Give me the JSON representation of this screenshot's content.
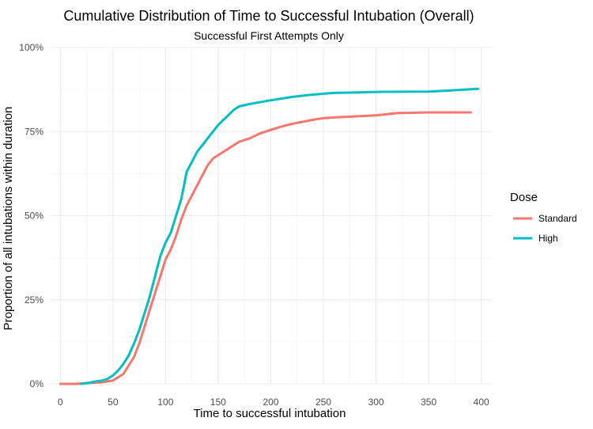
{
  "chart_data": {
    "type": "line",
    "title": "Cumulative Distribution of Time to Successful Intubation (Overall)",
    "subtitle": "Successful First Attempts Only",
    "xlabel": "Time to successful intubation",
    "ylabel": "Proportion of all intubations within duration",
    "xlim": [
      -10,
      410
    ],
    "ylim": [
      0,
      1
    ],
    "x_ticks": [
      0,
      50,
      100,
      150,
      200,
      250,
      300,
      350,
      400
    ],
    "x_tick_labels": [
      "0",
      "50",
      "100",
      "150",
      "200",
      "250",
      "300",
      "350",
      "400"
    ],
    "y_ticks": [
      0,
      0.25,
      0.5,
      0.75,
      1.0
    ],
    "y_tick_labels": [
      "0%",
      "25%",
      "50%",
      "75%",
      "100%"
    ],
    "grid": true,
    "legend": {
      "title": "Dose",
      "position": "right"
    },
    "series": [
      {
        "name": "Standard",
        "color": "#F8766D",
        "points": [
          [
            0,
            0
          ],
          [
            15,
            0
          ],
          [
            25,
            0.002
          ],
          [
            40,
            0.005
          ],
          [
            50,
            0.01
          ],
          [
            55,
            0.02
          ],
          [
            60,
            0.03
          ],
          [
            65,
            0.055
          ],
          [
            70,
            0.08
          ],
          [
            75,
            0.12
          ],
          [
            80,
            0.17
          ],
          [
            85,
            0.22
          ],
          [
            90,
            0.27
          ],
          [
            95,
            0.32
          ],
          [
            100,
            0.37
          ],
          [
            105,
            0.4
          ],
          [
            110,
            0.44
          ],
          [
            115,
            0.49
          ],
          [
            120,
            0.53
          ],
          [
            125,
            0.56
          ],
          [
            130,
            0.59
          ],
          [
            135,
            0.62
          ],
          [
            140,
            0.65
          ],
          [
            145,
            0.67
          ],
          [
            150,
            0.68
          ],
          [
            160,
            0.7
          ],
          [
            170,
            0.72
          ],
          [
            180,
            0.73
          ],
          [
            190,
            0.745
          ],
          [
            200,
            0.755
          ],
          [
            210,
            0.765
          ],
          [
            220,
            0.773
          ],
          [
            240,
            0.785
          ],
          [
            250,
            0.79
          ],
          [
            260,
            0.792
          ],
          [
            300,
            0.798
          ],
          [
            320,
            0.805
          ],
          [
            350,
            0.807
          ],
          [
            390,
            0.807
          ]
        ]
      },
      {
        "name": "High",
        "color": "#00BFC4",
        "points": [
          [
            20,
            0
          ],
          [
            25,
            0.002
          ],
          [
            30,
            0.005
          ],
          [
            35,
            0.008
          ],
          [
            40,
            0.01
          ],
          [
            45,
            0.015
          ],
          [
            50,
            0.025
          ],
          [
            55,
            0.04
          ],
          [
            60,
            0.06
          ],
          [
            65,
            0.085
          ],
          [
            70,
            0.12
          ],
          [
            75,
            0.16
          ],
          [
            80,
            0.21
          ],
          [
            85,
            0.26
          ],
          [
            90,
            0.32
          ],
          [
            95,
            0.38
          ],
          [
            100,
            0.42
          ],
          [
            105,
            0.45
          ],
          [
            110,
            0.5
          ],
          [
            115,
            0.55
          ],
          [
            120,
            0.63
          ],
          [
            125,
            0.66
          ],
          [
            130,
            0.69
          ],
          [
            135,
            0.71
          ],
          [
            140,
            0.73
          ],
          [
            145,
            0.75
          ],
          [
            150,
            0.77
          ],
          [
            155,
            0.785
          ],
          [
            160,
            0.8
          ],
          [
            165,
            0.815
          ],
          [
            170,
            0.825
          ],
          [
            180,
            0.832
          ],
          [
            200,
            0.843
          ],
          [
            220,
            0.853
          ],
          [
            240,
            0.86
          ],
          [
            260,
            0.865
          ],
          [
            280,
            0.866
          ],
          [
            300,
            0.868
          ],
          [
            350,
            0.869
          ],
          [
            370,
            0.872
          ],
          [
            385,
            0.875
          ],
          [
            397,
            0.877
          ]
        ]
      }
    ]
  }
}
